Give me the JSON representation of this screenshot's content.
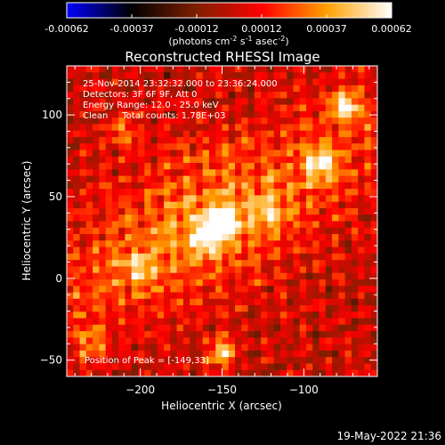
{
  "chart_data": {
    "type": "heatmap",
    "title": "Reconstructed RHESSI Image",
    "colorbar": {
      "ticks": [
        "-0.00062",
        "-0.00037",
        "-0.00012",
        "0.00012",
        "0.00037",
        "0.00062"
      ],
      "range": [
        -0.00062,
        0.00062
      ],
      "units": {
        "prefix": "(photons cm",
        "e1": "-2",
        "mid1": " s",
        "e2": "-1",
        "mid2": " asec",
        "e3": "-2",
        "suffix": ")"
      },
      "colormap": [
        "#0000ff",
        "#000000",
        "#7f1f00",
        "#ff0000",
        "#ffa000",
        "#ffffff"
      ]
    },
    "xlabel": "Heliocentric X (arcsec)",
    "ylabel": "Heliocentric Y (arcsec)",
    "xlim": [
      -245,
      -55
    ],
    "ylim": [
      -60,
      130
    ],
    "xticks": [
      {
        "value": -200,
        "label": "−200"
      },
      {
        "value": -150,
        "label": "−150"
      },
      {
        "value": -100,
        "label": "−100"
      }
    ],
    "yticks": [
      {
        "value": -50,
        "label": "−50"
      },
      {
        "value": 0,
        "label": "0"
      },
      {
        "value": 50,
        "label": "50"
      },
      {
        "value": 100,
        "label": "100"
      }
    ],
    "annotations": {
      "time": "25-Nov-2014 23:32:32.000 to 23:36:24.000",
      "detectors": "Detectors: 3F 6F 9F, Att 0",
      "energy": "Energy Range: 12.0 - 25.0 keV",
      "clean": "Clean     Total counts: 1.78E+03",
      "peak": "Position of Peak = [-149,33]"
    },
    "sources": [
      {
        "x": -149,
        "y": 33,
        "value": 0.00062
      },
      {
        "x": -160,
        "y": 25,
        "value": 0.0004
      },
      {
        "x": -75,
        "y": 105,
        "value": 0.0005
      },
      {
        "x": -90,
        "y": 70,
        "value": 0.00045
      },
      {
        "x": -150,
        "y": -45,
        "value": 0.00045
      },
      {
        "x": -200,
        "y": 5,
        "value": 0.0003
      },
      {
        "x": -210,
        "y": 90,
        "value": 0.00028
      },
      {
        "x": -120,
        "y": 40,
        "value": 0.0003
      },
      {
        "x": -230,
        "y": -40,
        "value": 0.00025
      }
    ]
  },
  "footer": {
    "timestamp": "19-May-2022 21:36"
  }
}
